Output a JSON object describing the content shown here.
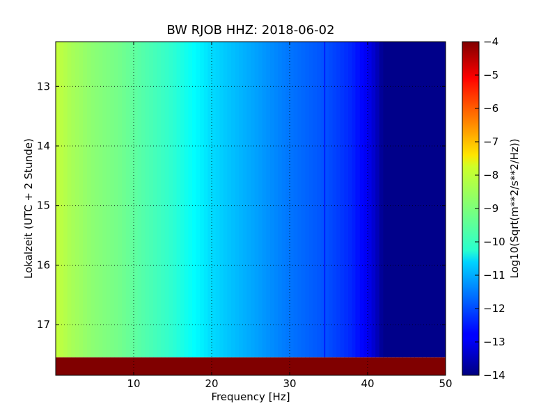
{
  "chart_data": {
    "type": "heatmap",
    "title": "BW RJOB HHZ: 2018-06-02",
    "xlabel": "Frequency [Hz]",
    "ylabel": "Lokalzeit (UTC + 2 Stunde)",
    "xlim": [
      0,
      50
    ],
    "ylim": [
      12.25,
      17.85
    ],
    "y_inverted": true,
    "xticks": [
      10,
      20,
      30,
      40,
      50
    ],
    "yticks": [
      13,
      14,
      15,
      16,
      17
    ],
    "grid": true,
    "colormap": "jet",
    "colorbar": {
      "label": "Log10(Sqrt(m**2/s**2/Hz))",
      "min": -14,
      "max": -4,
      "ticks": [
        -4,
        -5,
        -6,
        -7,
        -8,
        -9,
        -10,
        -11,
        -12,
        -13,
        -14
      ]
    },
    "spectral_profile": {
      "frequency_hz": [
        0,
        2,
        5,
        8,
        10,
        15,
        20,
        25,
        30,
        35,
        38,
        40,
        41,
        42,
        50
      ],
      "log10_amplitude": [
        -8.3,
        -8.6,
        -8.9,
        -9.1,
        -9.3,
        -9.8,
        -10.6,
        -11.1,
        -11.6,
        -12.0,
        -12.4,
        -12.9,
        -13.3,
        -13.9,
        -13.9
      ]
    },
    "features": [
      {
        "type": "band",
        "frequency_hz": 34.5,
        "log10_amplitude": -12.8
      },
      {
        "type": "band",
        "frequency_hz": 38.5,
        "log10_amplitude": -12.6
      },
      {
        "type": "no_data",
        "time_start": 17.55,
        "time_end": 17.85,
        "log10_amplitude": -4
      }
    ]
  }
}
